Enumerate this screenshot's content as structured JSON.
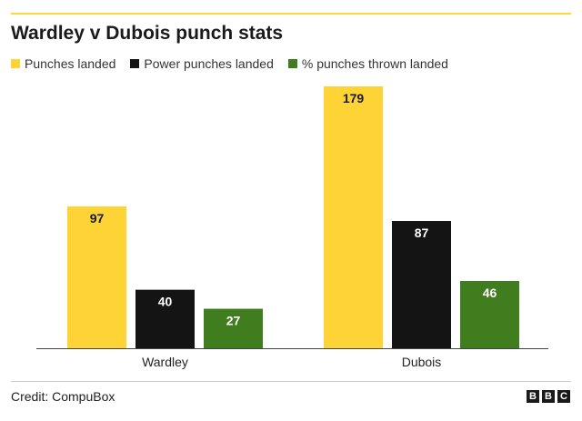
{
  "header": {
    "title": "Wardley v Dubois punch stats"
  },
  "footer": {
    "credit": "Credit: CompuBox",
    "logo_letters": [
      "B",
      "B",
      "C"
    ]
  },
  "colors": {
    "accent_rule": "#fdd836",
    "baseline": "#444444"
  },
  "chart_data": {
    "type": "bar",
    "title": "Wardley v Dubois punch stats",
    "categories": [
      "Wardley",
      "Dubois"
    ],
    "series": [
      {
        "name": "Punches landed",
        "color": "#fdd336",
        "label_color": "#1a1a1a",
        "values": [
          97,
          179
        ]
      },
      {
        "name": "Power punches landed",
        "color": "#141414",
        "label_color": "#ffffff",
        "values": [
          40,
          87
        ]
      },
      {
        "name": "% punches thrown landed",
        "color": "#3f7d1e",
        "label_color": "#ffffff",
        "values": [
          27,
          46
        ]
      }
    ],
    "xlabel": "",
    "ylabel": "",
    "ylim": [
      0,
      179
    ],
    "grid": false,
    "legend_position": "top-left",
    "data_labels": true
  }
}
